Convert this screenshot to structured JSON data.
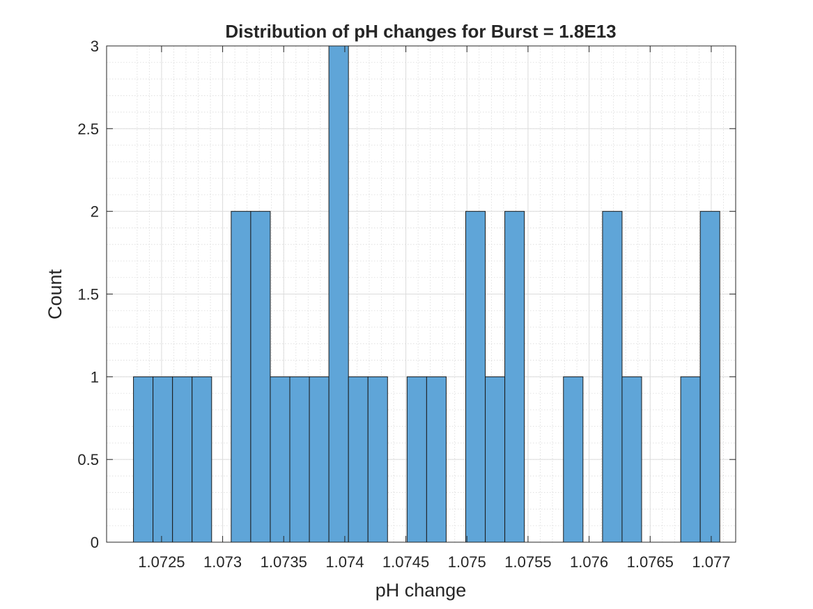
{
  "chart_data": {
    "type": "bar",
    "title": "Distribution of pH changes for Burst = 1.8E13",
    "xlabel": "pH change",
    "ylabel": "Count",
    "xlim": [
      1.07205,
      1.0772
    ],
    "ylim": [
      0,
      3
    ],
    "bin_width": 0.00016,
    "grid": true,
    "minor_grid": true,
    "bar_color": "#5FA5D8",
    "bar_edge_color": "#1a1a1a",
    "x_ticks": [
      1.0725,
      1.073,
      1.0735,
      1.074,
      1.0745,
      1.075,
      1.0755,
      1.076,
      1.0765,
      1.077
    ],
    "x_tick_labels": [
      "1.0725",
      "1.073",
      "1.0735",
      "1.074",
      "1.0745",
      "1.075",
      "1.0755",
      "1.076",
      "1.0765",
      "1.077"
    ],
    "y_ticks": [
      0,
      0.5,
      1,
      1.5,
      2,
      2.5,
      3
    ],
    "y_tick_labels": [
      "0",
      "0.5",
      "1",
      "1.5",
      "2",
      "2.5",
      "3"
    ],
    "bins": [
      {
        "x0": 1.07227,
        "x1": 1.07243,
        "count": 1
      },
      {
        "x0": 1.07243,
        "x1": 1.07259,
        "count": 1
      },
      {
        "x0": 1.07259,
        "x1": 1.07275,
        "count": 1
      },
      {
        "x0": 1.07275,
        "x1": 1.07291,
        "count": 1
      },
      {
        "x0": 1.07291,
        "x1": 1.07307,
        "count": 0
      },
      {
        "x0": 1.07307,
        "x1": 1.07323,
        "count": 2
      },
      {
        "x0": 1.07323,
        "x1": 1.07339,
        "count": 2
      },
      {
        "x0": 1.07339,
        "x1": 1.07355,
        "count": 1
      },
      {
        "x0": 1.07355,
        "x1": 1.07371,
        "count": 1
      },
      {
        "x0": 1.07371,
        "x1": 1.07387,
        "count": 1
      },
      {
        "x0": 1.07387,
        "x1": 1.07403,
        "count": 3
      },
      {
        "x0": 1.07403,
        "x1": 1.07419,
        "count": 1
      },
      {
        "x0": 1.07419,
        "x1": 1.07435,
        "count": 1
      },
      {
        "x0": 1.07435,
        "x1": 1.07451,
        "count": 0
      },
      {
        "x0": 1.07451,
        "x1": 1.07467,
        "count": 1
      },
      {
        "x0": 1.07467,
        "x1": 1.07483,
        "count": 1
      },
      {
        "x0": 1.07483,
        "x1": 1.07499,
        "count": 0
      },
      {
        "x0": 1.07499,
        "x1": 1.07515,
        "count": 2
      },
      {
        "x0": 1.07515,
        "x1": 1.07531,
        "count": 1
      },
      {
        "x0": 1.07531,
        "x1": 1.07547,
        "count": 2
      },
      {
        "x0": 1.07547,
        "x1": 1.07563,
        "count": 0
      },
      {
        "x0": 1.07563,
        "x1": 1.07579,
        "count": 0
      },
      {
        "x0": 1.07579,
        "x1": 1.07595,
        "count": 1
      },
      {
        "x0": 1.07595,
        "x1": 1.07611,
        "count": 0
      },
      {
        "x0": 1.07611,
        "x1": 1.07627,
        "count": 2
      },
      {
        "x0": 1.07627,
        "x1": 1.07643,
        "count": 1
      },
      {
        "x0": 1.07643,
        "x1": 1.07659,
        "count": 0
      },
      {
        "x0": 1.07659,
        "x1": 1.07675,
        "count": 0
      },
      {
        "x0": 1.07675,
        "x1": 1.07691,
        "count": 1
      },
      {
        "x0": 1.07691,
        "x1": 1.07707,
        "count": 2
      }
    ]
  }
}
